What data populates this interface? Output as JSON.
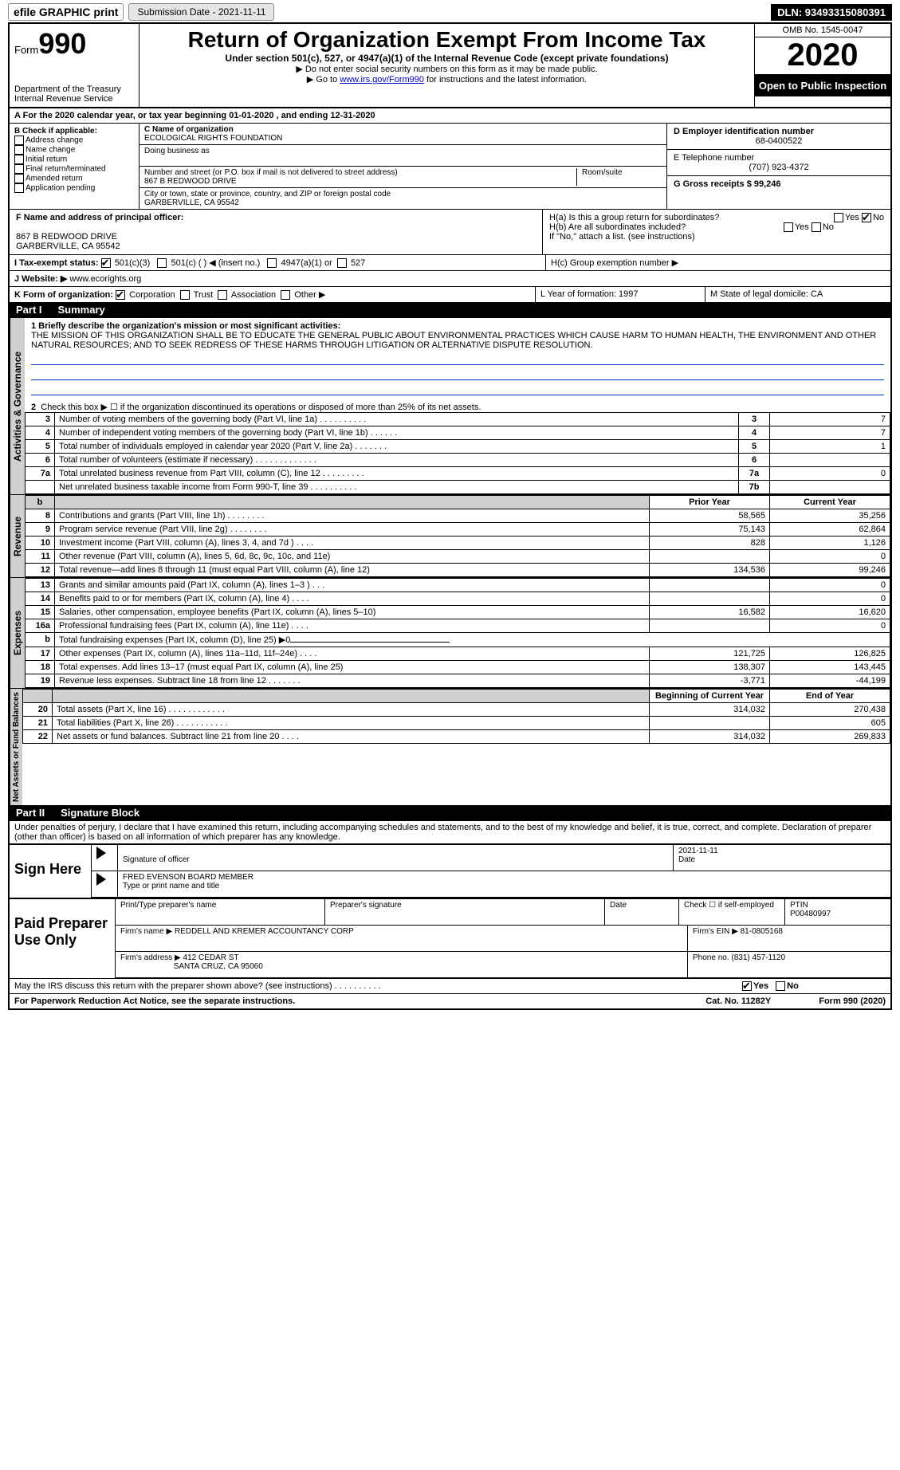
{
  "top": {
    "efile": "efile GRAPHIC print",
    "subdate_label": "Submission Date - 2021-11-11",
    "dln": "DLN: 93493315080391"
  },
  "header": {
    "form_label": "Form",
    "form_num": "990",
    "dept": "Department of the Treasury\nInternal Revenue Service",
    "title": "Return of Organization Exempt From Income Tax",
    "subtitle": "Under section 501(c), 527, or 4947(a)(1) of the Internal Revenue Code (except private foundations)",
    "note1": "▶ Do not enter social security numbers on this form as it may be made public.",
    "note2_pre": "▶ Go to ",
    "note2_link": "www.irs.gov/Form990",
    "note2_post": " for instructions and the latest information.",
    "omb": "OMB No. 1545-0047",
    "year": "2020",
    "open": "Open to Public Inspection"
  },
  "row_a": "A For the 2020 calendar year, or tax year beginning 01-01-2020     , and ending 12-31-2020",
  "col_b": {
    "hdr": "B Check if applicable:",
    "items": [
      "Address change",
      "Name change",
      "Initial return",
      "Final return/terminated",
      "Amended return",
      "Application pending"
    ]
  },
  "box_c": {
    "label_name": "C Name of organization",
    "name": "ECOLOGICAL RIGHTS FOUNDATION",
    "dba_label": "Doing business as",
    "addr_label": "Number and street (or P.O. box if mail is not delivered to street address)",
    "room_label": "Room/suite",
    "addr": "867 B REDWOOD DRIVE",
    "city_label": "City or town, state or province, country, and ZIP or foreign postal code",
    "city": "GARBERVILLE, CA  95542"
  },
  "box_d": {
    "ein_label": "D Employer identification number",
    "ein": "68-0400522",
    "phone_label": "E Telephone number",
    "phone": "(707) 923-4372",
    "gross_label": "G Gross receipts $ 99,246"
  },
  "box_f": {
    "label": "F  Name and address of principal officer:",
    "addr1": "867 B REDWOOD DRIVE",
    "addr2": "GARBERVILLE, CA  95542"
  },
  "box_h": {
    "a": "H(a)  Is this a group return for subordinates?",
    "b": "H(b)  Are all subordinates included?",
    "note": "If \"No,\" attach a list. (see instructions)",
    "c": "H(c)  Group exemption number ▶"
  },
  "row_i": {
    "label": "I  Tax-exempt status:",
    "opts": [
      "501(c)(3)",
      "501(c) (  ) ◀ (insert no.)",
      "4947(a)(1) or",
      "527"
    ]
  },
  "row_j": {
    "label": "J  Website: ▶",
    "val": "www.ecorights.org"
  },
  "row_k": {
    "label": "K Form of organization:",
    "opts": [
      "Corporation",
      "Trust",
      "Association",
      "Other ▶"
    ],
    "l_label": "L Year of formation: 1997",
    "m_label": "M State of legal domicile: CA"
  },
  "part1": {
    "title": "Part I",
    "name": "Summary",
    "mission_label": "1  Briefly describe the organization's mission or most significant activities:",
    "mission": "THE MISSION OF THIS ORGANIZATION SHALL BE TO EDUCATE THE GENERAL PUBLIC ABOUT ENVIRONMENTAL PRACTICES WHICH CAUSE HARM TO HUMAN HEALTH, THE ENVIRONMENT AND OTHER NATURAL RESOURCES; AND TO SEEK REDRESS OF THESE HARMS THROUGH LITIGATION OR ALTERNATIVE DISPUTE RESOLUTION.",
    "line2": "Check this box ▶ ☐ if the organization discontinued its operations or disposed of more than 25% of its net assets.",
    "gov_lines": [
      {
        "n": "3",
        "d": "Number of voting members of the governing body (Part VI, line 1a)   .    .    .    .    .    .    .    .    .    .",
        "box": "3",
        "v": "7"
      },
      {
        "n": "4",
        "d": "Number of independent voting members of the governing body (Part VI, line 1b)   .    .    .    .    .    .",
        "box": "4",
        "v": "7"
      },
      {
        "n": "5",
        "d": "Total number of individuals employed in calendar year 2020 (Part V, line 2a)   .    .    .    .    .    .    .",
        "box": "5",
        "v": "1"
      },
      {
        "n": "6",
        "d": "Total number of volunteers (estimate if necessary)   .    .    .    .    .    .    .    .    .    .    .    .    .",
        "box": "6",
        "v": ""
      },
      {
        "n": "7a",
        "d": "Total unrelated business revenue from Part VIII, column (C), line 12   .    .    .    .    .    .    .    .    .",
        "box": "7a",
        "v": "0"
      },
      {
        "n": "",
        "d": "Net unrelated business taxable income from Form 990-T, line 39   .    .    .    .    .    .    .    .    .    .",
        "box": "7b",
        "v": ""
      }
    ],
    "rev_head": {
      "py": "Prior Year",
      "cy": "Current Year"
    },
    "rev_lines": [
      {
        "n": "8",
        "d": "Contributions and grants (Part VIII, line 1h)   .    .    .    .    .    .    .    .",
        "py": "58,565",
        "cy": "35,256"
      },
      {
        "n": "9",
        "d": "Program service revenue (Part VIII, line 2g)   .    .    .    .    .    .    .    .",
        "py": "75,143",
        "cy": "62,864"
      },
      {
        "n": "10",
        "d": "Investment income (Part VIII, column (A), lines 3, 4, and 7d )   .    .    .    .",
        "py": "828",
        "cy": "1,126"
      },
      {
        "n": "11",
        "d": "Other revenue (Part VIII, column (A), lines 5, 6d, 8c, 9c, 10c, and 11e)",
        "py": "",
        "cy": "0"
      },
      {
        "n": "12",
        "d": "Total revenue—add lines 8 through 11 (must equal Part VIII, column (A), line 12)",
        "py": "134,536",
        "cy": "99,246"
      }
    ],
    "exp_lines": [
      {
        "n": "13",
        "d": "Grants and similar amounts paid (Part IX, column (A), lines 1–3 )   .    .    .",
        "py": "",
        "cy": "0"
      },
      {
        "n": "14",
        "d": "Benefits paid to or for members (Part IX, column (A), line 4)   .    .    .    .",
        "py": "",
        "cy": "0"
      },
      {
        "n": "15",
        "d": "Salaries, other compensation, employee benefits (Part IX, column (A), lines 5–10)",
        "py": "16,582",
        "cy": "16,620"
      },
      {
        "n": "16a",
        "d": "Professional fundraising fees (Part IX, column (A), line 11e)   .    .    .    .",
        "py": "",
        "cy": "0"
      },
      {
        "n": "b",
        "d": "Total fundraising expenses (Part IX, column (D), line 25) ▶0",
        "py": "—",
        "cy": "—"
      },
      {
        "n": "17",
        "d": "Other expenses (Part IX, column (A), lines 11a–11d, 11f–24e)   .    .    .    .",
        "py": "121,725",
        "cy": "126,825"
      },
      {
        "n": "18",
        "d": "Total expenses. Add lines 13–17 (must equal Part IX, column (A), line 25)",
        "py": "138,307",
        "cy": "143,445"
      },
      {
        "n": "19",
        "d": "Revenue less expenses. Subtract line 18 from line 12   .    .    .    .    .    .    .",
        "py": "-3,771",
        "cy": "-44,199"
      }
    ],
    "net_head": {
      "py": "Beginning of Current Year",
      "cy": "End of Year"
    },
    "net_lines": [
      {
        "n": "20",
        "d": "Total assets (Part X, line 16)   .    .    .    .    .    .    .    .    .    .    .    .",
        "py": "314,032",
        "cy": "270,438"
      },
      {
        "n": "21",
        "d": "Total liabilities (Part X, line 26)   .    .    .    .    .    .    .    .    .    .    .",
        "py": "",
        "cy": "605"
      },
      {
        "n": "22",
        "d": "Net assets or fund balances. Subtract line 21 from line 20   .    .    .    .",
        "py": "314,032",
        "cy": "269,833"
      }
    ]
  },
  "part2": {
    "title": "Part II",
    "name": "Signature Block",
    "declare": "Under penalties of perjury, I declare that I have examined this return, including accompanying schedules and statements, and to the best of my knowledge and belief, it is true, correct, and complete. Declaration of preparer (other than officer) is based on all information of which preparer has any knowledge."
  },
  "sign": {
    "label": "Sign Here",
    "sig_label": "Signature of officer",
    "date": "2021-11-11",
    "date_label": "Date",
    "name": "FRED EVENSON  BOARD MEMBER",
    "name_label": "Type or print name and title"
  },
  "prep": {
    "label": "Paid Preparer Use Only",
    "h1": "Print/Type preparer's name",
    "h2": "Preparer's signature",
    "h3": "Date",
    "h4": "Check ☐ if self-employed",
    "h5": "PTIN",
    "ptin": "P00480997",
    "firm_label": "Firm's name    ▶",
    "firm": "REDDELL AND KREMER ACCOUNTANCY CORP",
    "ein_label": "Firm's EIN ▶",
    "ein": "81-0805168",
    "addr_label": "Firm's address ▶",
    "addr": "412 CEDAR ST",
    "city": "SANTA CRUZ, CA  95060",
    "phone_label": "Phone no.",
    "phone": "(831) 457-1120"
  },
  "discuss": "May the IRS discuss this return with the preparer shown above? (see instructions)   .    .    .    .    .    .    .    .    .    .",
  "footer": {
    "left": "For Paperwork Reduction Act Notice, see the separate instructions.",
    "mid": "Cat. No. 11282Y",
    "right": "Form 990 (2020)"
  },
  "tabs": {
    "gov": "Activities & Governance",
    "rev": "Revenue",
    "exp": "Expenses",
    "net": "Net Assets or Fund Balances"
  },
  "yes": "Yes",
  "no": "No"
}
